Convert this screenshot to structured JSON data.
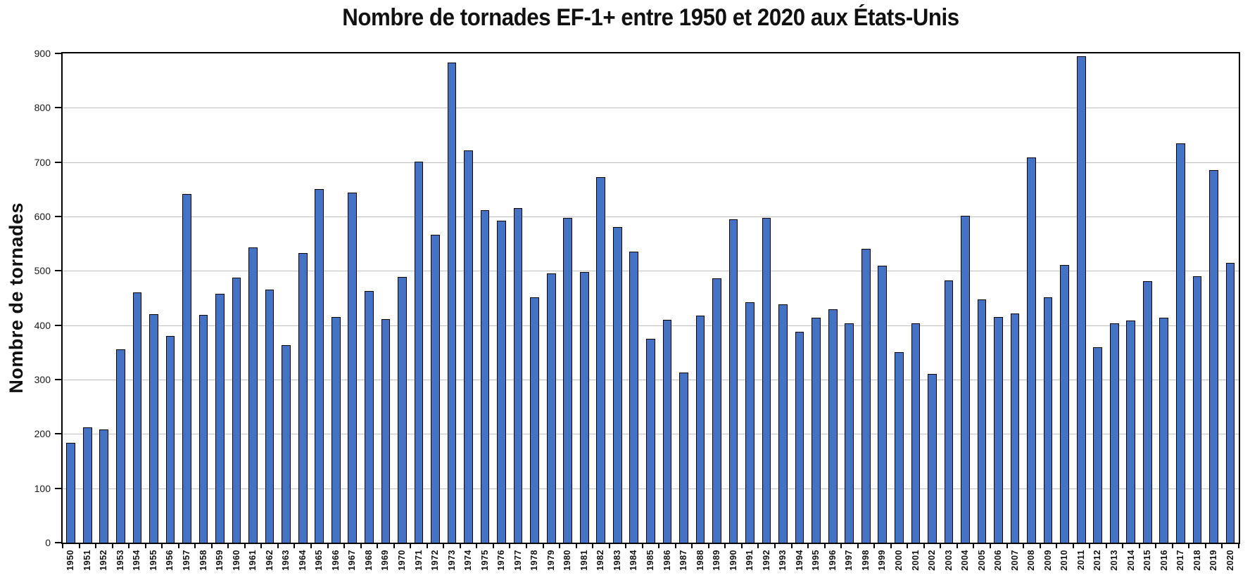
{
  "chart_data": {
    "type": "bar",
    "title": "Nombre de tornades EF-1+ entre 1950 et 2020 aux États-Unis",
    "xlabel": "",
    "ylabel": "Nombre de tornades",
    "ylim": [
      0,
      900
    ],
    "ytick_step": 100,
    "yticks": [
      0,
      100,
      200,
      300,
      400,
      500,
      600,
      700,
      800,
      900
    ],
    "grid": "horizontal-gridlines-on",
    "legend": "none",
    "categories": [
      "1950",
      "1951",
      "1952",
      "1953",
      "1954",
      "1955",
      "1956",
      "1957",
      "1958",
      "1959",
      "1960",
      "1961",
      "1962",
      "1963",
      "1964",
      "1965",
      "1966",
      "1967",
      "1968",
      "1969",
      "1970",
      "1971",
      "1972",
      "1973",
      "1974",
      "1975",
      "1976",
      "1977",
      "1978",
      "1979",
      "1980",
      "1981",
      "1982",
      "1983",
      "1984",
      "1985",
      "1986",
      "1987",
      "1988",
      "1989",
      "1990",
      "1991",
      "1992",
      "1993",
      "1994",
      "1995",
      "1996",
      "1997",
      "1998",
      "1999",
      "2000",
      "2001",
      "2002",
      "2003",
      "2004",
      "2005",
      "2006",
      "2007",
      "2008",
      "2009",
      "2010",
      "2011",
      "2012",
      "2013",
      "2014",
      "2015",
      "2016",
      "2017",
      "2018",
      "2019",
      "2020"
    ],
    "values": [
      184,
      212,
      208,
      355,
      461,
      420,
      380,
      641,
      419,
      458,
      488,
      543,
      466,
      364,
      533,
      650,
      415,
      644,
      463,
      411,
      489,
      701,
      566,
      883,
      722,
      612,
      592,
      616,
      451,
      495,
      598,
      498,
      673,
      581,
      535,
      375,
      410,
      313,
      418,
      486,
      595,
      442,
      598,
      438,
      388,
      414,
      429,
      403,
      540,
      509,
      351,
      403,
      310,
      482,
      601,
      447,
      415,
      421,
      708,
      451,
      511,
      895,
      360,
      403,
      409,
      481,
      414,
      734,
      490,
      685,
      515
    ]
  },
  "colors": {
    "bar_fill": "#4472C4",
    "bar_border": "#000000",
    "gridline": "#BFBFBF",
    "axis_border": "#000000",
    "background": "#FFFFFF",
    "text": "#111111"
  }
}
